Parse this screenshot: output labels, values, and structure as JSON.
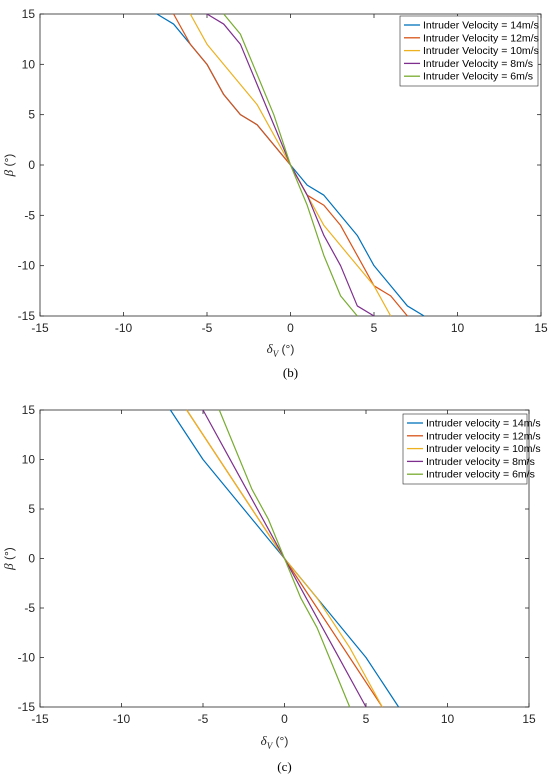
{
  "chart_data": [
    {
      "type": "line",
      "panel_label": "(b)",
      "xlabel_symbol": "δ",
      "xlabel_sub": "V",
      "xlabel_unit": " (°)",
      "ylabel_symbol": "β",
      "ylabel_unit": " (°)",
      "xlim": [
        -15,
        15
      ],
      "ylim": [
        -15,
        15
      ],
      "xticks": [
        -15,
        -10,
        -5,
        0,
        5,
        10,
        15
      ],
      "yticks": [
        -15,
        -10,
        -5,
        0,
        5,
        10,
        15
      ],
      "legend_position": "top-right",
      "series": [
        {
          "name": "Intruder Velocity = 14m/s",
          "color": "#0072BD",
          "points": [
            [
              -8,
              15
            ],
            [
              -7,
              14
            ],
            [
              -6,
              12
            ],
            [
              -5,
              10
            ],
            [
              -4,
              7
            ],
            [
              -3,
              5
            ],
            [
              -2,
              4
            ],
            [
              -1,
              2
            ],
            [
              0,
              0
            ],
            [
              1,
              -2
            ],
            [
              2,
              -3
            ],
            [
              3,
              -5
            ],
            [
              4,
              -7
            ],
            [
              5,
              -10
            ],
            [
              6,
              -12
            ],
            [
              7,
              -14
            ],
            [
              8,
              -15
            ]
          ]
        },
        {
          "name": "Intruder Velocity = 12m/s",
          "color": "#D95319",
          "points": [
            [
              -7,
              15
            ],
            [
              -6,
              12
            ],
            [
              -5,
              10
            ],
            [
              -4,
              7
            ],
            [
              -3,
              5
            ],
            [
              -2,
              4
            ],
            [
              -1,
              2
            ],
            [
              0,
              0
            ],
            [
              1,
              -3
            ],
            [
              2,
              -4
            ],
            [
              3,
              -6
            ],
            [
              4,
              -9
            ],
            [
              5,
              -12
            ],
            [
              6,
              -13
            ],
            [
              7,
              -15
            ]
          ]
        },
        {
          "name": "Intruder Velocity = 10m/s",
          "color": "#EDB120",
          "points": [
            [
              -6,
              15
            ],
            [
              -5,
              12
            ],
            [
              -4,
              10
            ],
            [
              -3,
              8
            ],
            [
              -2,
              6
            ],
            [
              -1,
              3
            ],
            [
              0,
              0
            ],
            [
              1,
              -3
            ],
            [
              2,
              -6
            ],
            [
              3,
              -8
            ],
            [
              4,
              -10
            ],
            [
              5,
              -12
            ],
            [
              6,
              -15
            ]
          ]
        },
        {
          "name": "Intruder Velocity = 8m/s",
          "color": "#7E2F8E",
          "points": [
            [
              -5,
              15
            ],
            [
              -4,
              14
            ],
            [
              -3,
              12
            ],
            [
              -2,
              8
            ],
            [
              -1,
              4
            ],
            [
              0,
              0
            ],
            [
              1,
              -3
            ],
            [
              2,
              -7
            ],
            [
              3,
              -10
            ],
            [
              4,
              -14
            ],
            [
              5,
              -15
            ]
          ]
        },
        {
          "name": "Intruder Velocity = 6m/s",
          "color": "#77AC30",
          "points": [
            [
              -4,
              15
            ],
            [
              -3,
              13
            ],
            [
              -2,
              9
            ],
            [
              -1,
              5
            ],
            [
              0,
              0
            ],
            [
              1,
              -4
            ],
            [
              2,
              -9
            ],
            [
              3,
              -13
            ],
            [
              4,
              -15
            ]
          ]
        }
      ]
    },
    {
      "type": "line",
      "panel_label": "(c)",
      "xlabel_symbol": "δ",
      "xlabel_sub": "V",
      "xlabel_unit": " (°)",
      "ylabel_symbol": "β",
      "ylabel_unit": " (°)",
      "xlim": [
        -15,
        15
      ],
      "ylim": [
        -15,
        15
      ],
      "xticks": [
        -15,
        -10,
        -5,
        0,
        5,
        10,
        15
      ],
      "yticks": [
        -15,
        -10,
        -5,
        0,
        5,
        10,
        15
      ],
      "legend_position": "top-right",
      "series": [
        {
          "name": "Intruder velocity = 14m/s",
          "color": "#0072BD",
          "points": [
            [
              -7,
              15
            ],
            [
              -5,
              10
            ],
            [
              -3,
              6
            ],
            [
              -1,
              2
            ],
            [
              0,
              0
            ],
            [
              1,
              -2
            ],
            [
              3,
              -6
            ],
            [
              5,
              -10
            ],
            [
              7,
              -15
            ]
          ]
        },
        {
          "name": "Intruder velocity = 12m/s",
          "color": "#D95319",
          "points": [
            [
              -6,
              15
            ],
            [
              -4,
              10
            ],
            [
              -2,
              5
            ],
            [
              0,
              0
            ],
            [
              2,
              -5
            ],
            [
              4,
              -10
            ],
            [
              6,
              -15
            ]
          ]
        },
        {
          "name": "Intruder velocity = 10m/s",
          "color": "#EDB120",
          "points": [
            [
              -6,
              15
            ],
            [
              -4,
              10
            ],
            [
              -2,
              5
            ],
            [
              0,
              0
            ],
            [
              2,
              -4
            ],
            [
              4,
              -9
            ],
            [
              6,
              -15
            ]
          ]
        },
        {
          "name": "Intruder velocity = 8m/s",
          "color": "#7E2F8E",
          "points": [
            [
              -5,
              15
            ],
            [
              -3,
              9
            ],
            [
              -1,
              3
            ],
            [
              0,
              0
            ],
            [
              1,
              -3
            ],
            [
              3,
              -9
            ],
            [
              5,
              -15
            ]
          ]
        },
        {
          "name": "Intruder velocity = 6m/s",
          "color": "#77AC30",
          "points": [
            [
              -4,
              15
            ],
            [
              -3,
              11
            ],
            [
              -2,
              7
            ],
            [
              -1,
              4
            ],
            [
              0,
              0
            ],
            [
              1,
              -4
            ],
            [
              2,
              -7
            ],
            [
              3,
              -11
            ],
            [
              4,
              -15
            ]
          ]
        }
      ]
    }
  ]
}
